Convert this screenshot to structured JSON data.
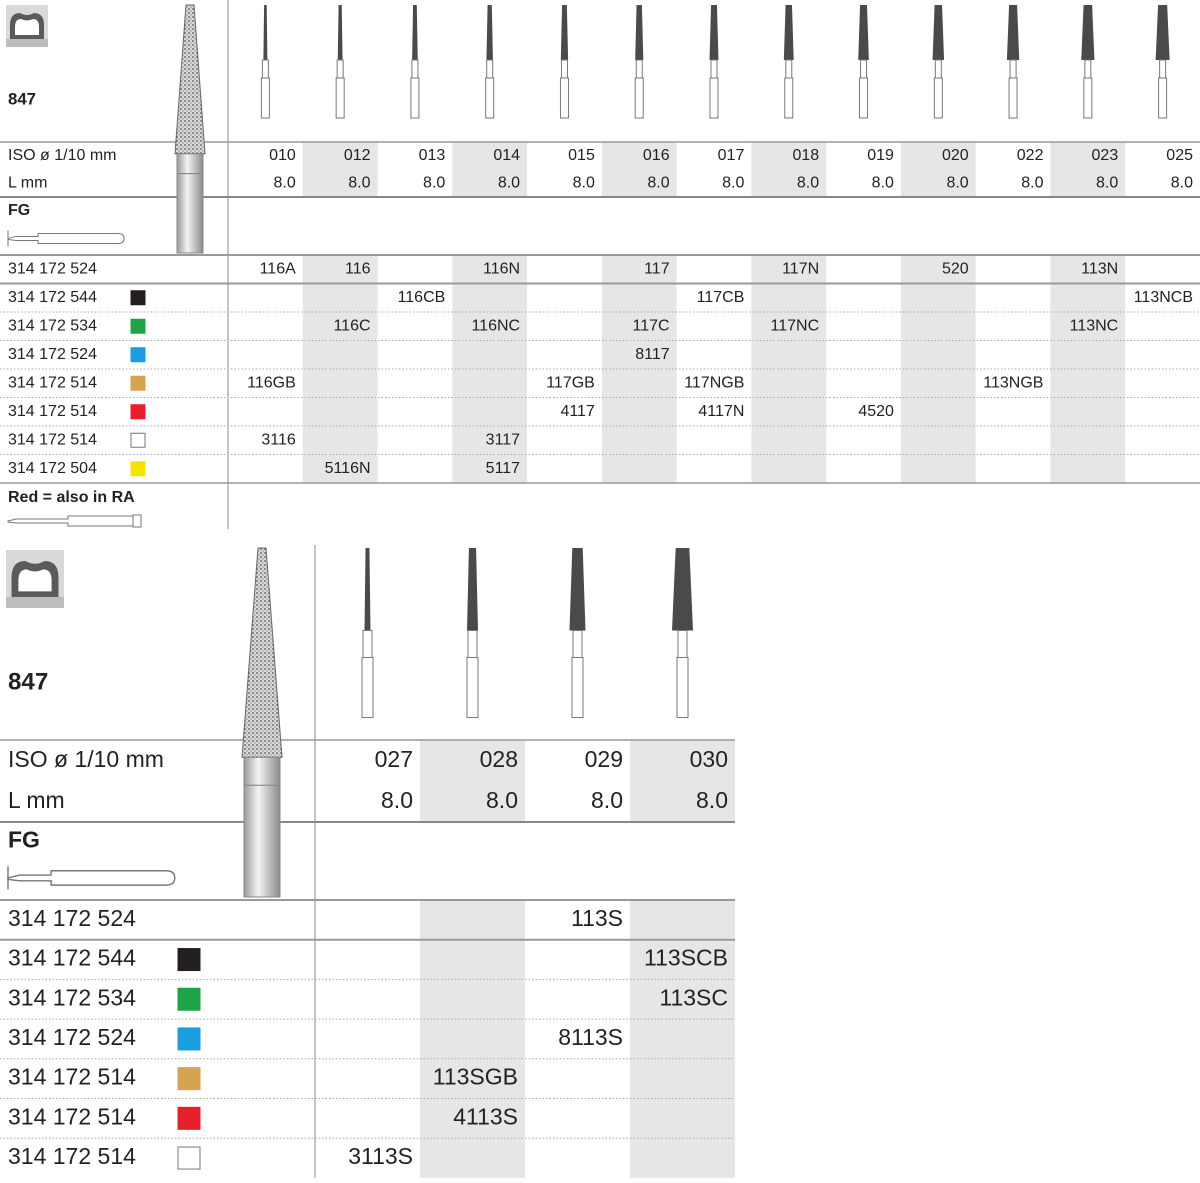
{
  "table_1": {
    "model": "847",
    "iso_label": "ISO ø 1/10 mm",
    "iso": [
      "010",
      "012",
      "013",
      "014",
      "015",
      "016",
      "017",
      "018",
      "019",
      "020",
      "022",
      "023",
      "025"
    ],
    "length_label": "L mm",
    "lengths": [
      "8.0",
      "8.0",
      "8.0",
      "8.0",
      "8.0",
      "8.0",
      "8.0",
      "8.0",
      "8.0",
      "8.0",
      "8.0",
      "8.0",
      "8.0"
    ],
    "shank": "FG",
    "rows": [
      {
        "code": "314 172 524",
        "swatch": null,
        "cells": [
          "116A",
          "116",
          null,
          "116N",
          null,
          {
            "text": "117",
            "color": "#d7262b"
          },
          null,
          "117N",
          null,
          "520",
          null,
          "113N",
          null
        ]
      },
      {
        "code": "314 172 544",
        "swatch": "#231f20",
        "cells": [
          null,
          null,
          "116CB",
          null,
          null,
          null,
          "117CB",
          null,
          null,
          null,
          null,
          null,
          "113NCB"
        ]
      },
      {
        "code": "314 172 534",
        "swatch": "#1fa347",
        "cells": [
          null,
          "116C",
          null,
          "116NC",
          null,
          {
            "text": "117C",
            "color": "#d7262b"
          },
          null,
          "117NC",
          null,
          null,
          null,
          "113NC",
          null
        ]
      },
      {
        "code": "314 172 524",
        "swatch": "#1b9de0",
        "cells": [
          null,
          null,
          null,
          null,
          null,
          "8117",
          null,
          null,
          null,
          null,
          null,
          null,
          null
        ]
      },
      {
        "code": "314 172 514",
        "swatch": "#d4a452",
        "cells": [
          "116GB",
          null,
          null,
          null,
          {
            "text": "117GB",
            "color": "#d7262b"
          },
          null,
          "117NGB",
          null,
          null,
          null,
          "113NGB",
          null,
          null
        ]
      },
      {
        "code": "314 172 514",
        "swatch": "#e5202a",
        "cells": [
          null,
          null,
          null,
          null,
          {
            "text": "4117",
            "color": "#d7262b"
          },
          null,
          "4117N",
          null,
          "4520",
          null,
          null,
          null,
          null
        ]
      },
      {
        "code": "314 172 514",
        "swatch": "#ffffff",
        "cells": [
          "3116",
          null,
          null,
          {
            "text": "3117",
            "color": "#d7262b"
          },
          null,
          null,
          null,
          null,
          null,
          null,
          null,
          null,
          null
        ]
      },
      {
        "code": "314 172 504",
        "swatch": "#f5e400",
        "cells": [
          null,
          "5116N",
          null,
          {
            "text": "5117",
            "color": "#d7262b"
          },
          null,
          null,
          null,
          null,
          null,
          null,
          null,
          null,
          null
        ]
      }
    ],
    "note": "Red = also in RA",
    "note_color": "#d7262b"
  },
  "table_2": {
    "model": "847",
    "iso_label": "ISO ø 1/10 mm",
    "iso": [
      "027",
      "028",
      "029",
      "030"
    ],
    "length_label": "L mm",
    "lengths": [
      "8.0",
      "8.0",
      "8.0",
      "8.0"
    ],
    "shank": "FG",
    "rows": [
      {
        "code": "314 172 524",
        "swatch": null,
        "cells": [
          null,
          null,
          "113S",
          null
        ]
      },
      {
        "code": "314 172 544",
        "swatch": "#231f20",
        "cells": [
          null,
          null,
          null,
          "113SCB"
        ]
      },
      {
        "code": "314 172 534",
        "swatch": "#1fa347",
        "cells": [
          null,
          null,
          null,
          "113SC"
        ]
      },
      {
        "code": "314 172 524",
        "swatch": "#1b9de0",
        "cells": [
          null,
          null,
          "8113S",
          null
        ]
      },
      {
        "code": "314 172 514",
        "swatch": "#d4a452",
        "cells": [
          null,
          "113SGB",
          null,
          null
        ]
      },
      {
        "code": "314 172 514",
        "swatch": "#e5202a",
        "cells": [
          null,
          "4113S",
          null,
          null
        ]
      },
      {
        "code": "314 172 514",
        "swatch": "#ffffff",
        "cells": [
          "3113S",
          null,
          null,
          null
        ]
      }
    ]
  }
}
